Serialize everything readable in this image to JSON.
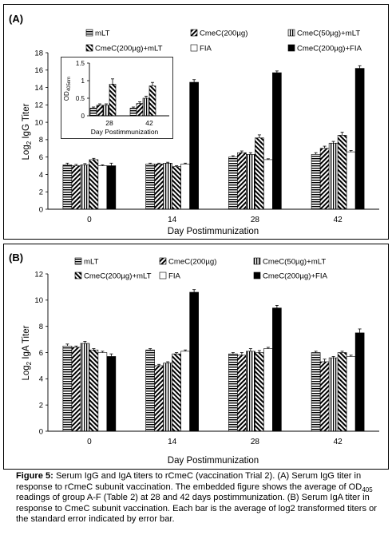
{
  "panels": [
    {
      "panel_label": "(A)",
      "ylabel_prefix": "Log",
      "ylabel_sub": "2",
      "ylabel_main": "IgG Titer",
      "xlabel": "Day Postimmunization"
    },
    {
      "panel_label": "(B)",
      "ylabel_prefix": "Log",
      "ylabel_sub": "2",
      "ylabel_main": "IgA Titer",
      "xlabel": "Day Postimmunization"
    }
  ],
  "inset": {
    "ylabel_prefix": "OD",
    "ylabel_sub": "405nm",
    "xlabel": "Day Postimmunization"
  },
  "legend_labels": [
    "mLT",
    "CmeC(200µg)",
    "CmeC(50µg)+mLT",
    "CmeC(200µg)+mLT",
    "FIA",
    "CmeC(200µg)+FIA"
  ],
  "chart_data": [
    {
      "type": "bar",
      "title": "",
      "xlabel": "Day Postimmunization",
      "ylabel": "Log2 IgG Titer",
      "categories": [
        "0",
        "14",
        "28",
        "42"
      ],
      "ylim": [
        0,
        18
      ],
      "yticks": [
        0,
        2,
        4,
        6,
        8,
        10,
        12,
        14,
        16,
        18
      ],
      "grid": false,
      "legend": "top",
      "series": [
        {
          "name": "mLT",
          "values": [
            5.1,
            5.2,
            6.0,
            6.3
          ],
          "errors": [
            0.2,
            0.1,
            0.15,
            0.2
          ]
        },
        {
          "name": "CmeC(200µg)",
          "values": [
            5.0,
            5.2,
            6.5,
            7.0
          ],
          "errors": [
            0.15,
            0.1,
            0.2,
            0.25
          ]
        },
        {
          "name": "CmeC(50µg)+mLT",
          "values": [
            5.1,
            5.3,
            6.3,
            7.6
          ],
          "errors": [
            0.15,
            0.1,
            0.2,
            0.2
          ]
        },
        {
          "name": "CmeC(200µg)+mLT",
          "values": [
            5.7,
            4.9,
            8.2,
            8.5
          ],
          "errors": [
            0.15,
            0.1,
            0.35,
            0.35
          ]
        },
        {
          "name": "FIA",
          "values": [
            5.0,
            5.2,
            5.7,
            6.6
          ],
          "errors": [
            0.1,
            0.1,
            0.1,
            0.15
          ]
        },
        {
          "name": "CmeC(200µg)+FIA",
          "values": [
            5.0,
            14.6,
            15.7,
            16.2
          ],
          "errors": [
            0.3,
            0.3,
            0.2,
            0.3
          ]
        }
      ]
    },
    {
      "type": "bar",
      "title": "",
      "xlabel": "Day Postimmunization",
      "ylabel": "OD405nm",
      "categories": [
        "28",
        "42"
      ],
      "ylim": [
        0,
        1.5
      ],
      "yticks": [
        0,
        0.5,
        1,
        1.5
      ],
      "grid": false,
      "legend": "none",
      "series": [
        {
          "name": "mLT",
          "values": [
            0.22,
            0.22
          ],
          "errors": [
            0.03,
            0.03
          ]
        },
        {
          "name": "CmeC(200µg)",
          "values": [
            0.3,
            0.35
          ],
          "errors": [
            0.04,
            0.05
          ]
        },
        {
          "name": "CmeC(50µg)+mLT",
          "values": [
            0.3,
            0.5
          ],
          "errors": [
            0.04,
            0.06
          ]
        },
        {
          "name": "CmeC(200µg)+mLT",
          "values": [
            0.9,
            0.85
          ],
          "errors": [
            0.15,
            0.1
          ]
        },
        {
          "name": "FIA",
          "values": [
            0,
            0
          ],
          "errors": [
            0,
            0
          ]
        },
        {
          "name": "CmeC(200µg)+FIA",
          "values": [
            0,
            0
          ],
          "errors": [
            0,
            0
          ]
        }
      ]
    },
    {
      "type": "bar",
      "title": "",
      "xlabel": "Day Postimmunization",
      "ylabel": "Log2 IgA Titer",
      "categories": [
        "0",
        "14",
        "28",
        "42"
      ],
      "ylim": [
        0,
        12
      ],
      "yticks": [
        0,
        2,
        4,
        6,
        8,
        10,
        12
      ],
      "grid": false,
      "legend": "top",
      "series": [
        {
          "name": "mLT",
          "values": [
            6.5,
            6.2,
            5.9,
            6.0
          ],
          "errors": [
            0.15,
            0.1,
            0.1,
            0.1
          ]
        },
        {
          "name": "CmeC(200µg)",
          "values": [
            6.4,
            5.0,
            5.8,
            5.3
          ],
          "errors": [
            0.1,
            0.1,
            0.2,
            0.2
          ]
        },
        {
          "name": "CmeC(50µg)+mLT",
          "values": [
            6.7,
            5.2,
            6.1,
            5.6
          ],
          "errors": [
            0.15,
            0.1,
            0.2,
            0.1
          ]
        },
        {
          "name": "CmeC(200µg)+mLT",
          "values": [
            6.2,
            5.9,
            6.0,
            6.0
          ],
          "errors": [
            0.1,
            0.1,
            0.15,
            0.1
          ]
        },
        {
          "name": "FIA",
          "values": [
            6.0,
            6.1,
            6.3,
            5.7
          ],
          "errors": [
            0.1,
            0.1,
            0.1,
            0.1
          ]
        },
        {
          "name": "CmeC(200µg)+FIA",
          "values": [
            5.7,
            10.6,
            9.4,
            7.5
          ],
          "errors": [
            0.2,
            0.2,
            0.2,
            0.3
          ]
        }
      ]
    }
  ],
  "caption": {
    "label": "Figure 5:",
    "text_1": " Serum IgG and IgA titers to rCmeC (vaccination Trial 2). (A) Serum IgG titer in response to rCmeC subunit vaccination. The embedded figure shows the average of OD",
    "sub": "405",
    "text_2": " readings of group A-F (Table 2) at 28 and 42 days postimmunization. (B) Serum IgA titer in response to CmeC subunit vaccination. Each bar is the average of log2 transformed titers or the standard error indicated by error bar."
  }
}
